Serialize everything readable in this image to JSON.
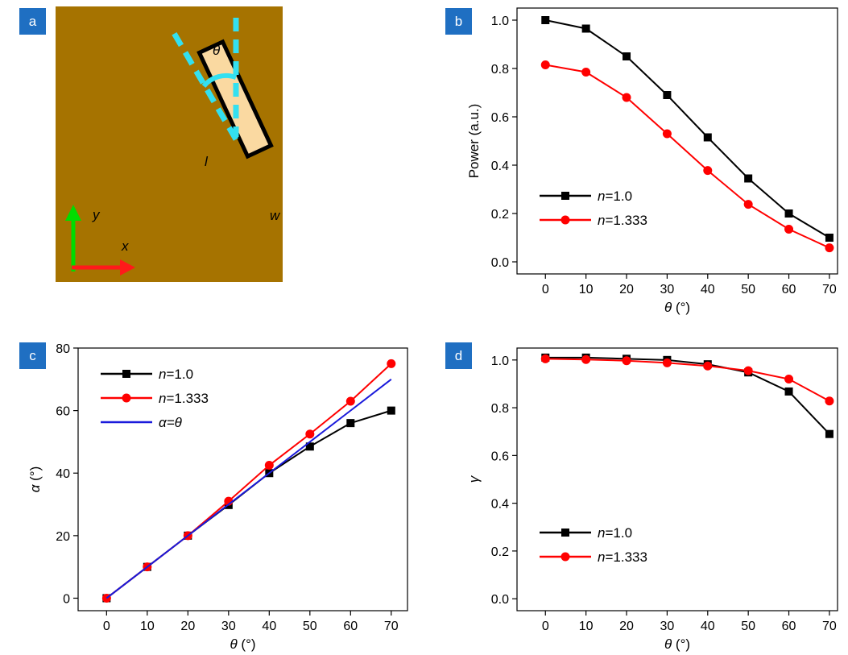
{
  "panels": {
    "a": {
      "badge": "a",
      "substrate_color": "#a67300",
      "rod_color": "#fad9a1",
      "dash_color": "#33e0f0",
      "labels": {
        "theta": "θ",
        "l": "l",
        "w": "w",
        "y": "y",
        "x": "x"
      }
    },
    "b": {
      "badge": "b"
    },
    "c": {
      "badge": "c"
    },
    "d": {
      "badge": "d"
    }
  },
  "chart_data": [
    {
      "panel": "b",
      "type": "line",
      "x": [
        0,
        10,
        20,
        30,
        40,
        50,
        60,
        70
      ],
      "xlabel_symbol": "θ",
      "xlabel_unit": " (°)",
      "ylabel": "Power (a.u.)",
      "xlim": [
        -7,
        72
      ],
      "ylim": [
        -0.05,
        1.05
      ],
      "xticks": [
        0,
        10,
        20,
        30,
        40,
        50,
        60,
        70
      ],
      "yticks": [
        0.0,
        0.2,
        0.4,
        0.6,
        0.8,
        1.0
      ],
      "ytick_format": "1",
      "legend_position": "lower-left",
      "series": [
        {
          "name": "n=1.0",
          "name_italic": "n",
          "name_rest": "=1.0",
          "color": "#000000",
          "marker": "square",
          "values": [
            1.0,
            0.965,
            0.85,
            0.69,
            0.515,
            0.345,
            0.2,
            0.1
          ]
        },
        {
          "name": "n=1.333",
          "name_italic": "n",
          "name_rest": "=1.333",
          "color": "#ff0000",
          "marker": "circle",
          "values": [
            0.815,
            0.785,
            0.68,
            0.53,
            0.378,
            0.238,
            0.135,
            0.058
          ]
        }
      ]
    },
    {
      "panel": "c",
      "type": "line",
      "x": [
        0,
        10,
        20,
        30,
        40,
        50,
        60,
        70
      ],
      "xlabel_symbol": "θ",
      "xlabel_unit": " (°)",
      "ylabel_symbol": "α",
      "ylabel_unit": " (°)",
      "xlim": [
        -7,
        74
      ],
      "ylim": [
        -4,
        80
      ],
      "xticks": [
        0,
        10,
        20,
        30,
        40,
        50,
        60,
        70
      ],
      "yticks": [
        0,
        20,
        40,
        60,
        80
      ],
      "ytick_format": "0",
      "legend_position": "upper-left",
      "series": [
        {
          "name": "n=1.0",
          "name_italic": "n",
          "name_rest": "=1.0",
          "color": "#000000",
          "marker": "square",
          "values": [
            0,
            10,
            20,
            29.8,
            40,
            48.5,
            56,
            60
          ]
        },
        {
          "name": "n=1.333",
          "name_italic": "n",
          "name_rest": "=1.333",
          "color": "#ff0000",
          "marker": "circle",
          "values": [
            0,
            10,
            20,
            31,
            42.5,
            52.5,
            63,
            75
          ]
        },
        {
          "name": "α=θ",
          "name_italic": "α=θ",
          "name_rest": "",
          "color": "#1a1adb",
          "marker": "none",
          "values": [
            0,
            10,
            20,
            30,
            40,
            50,
            60,
            70
          ]
        }
      ]
    },
    {
      "panel": "d",
      "type": "line",
      "x": [
        0,
        10,
        20,
        30,
        40,
        50,
        60,
        70
      ],
      "xlabel_symbol": "θ",
      "xlabel_unit": " (°)",
      "ylabel_symbol": "γ",
      "ylabel_unit": "",
      "xlim": [
        -7,
        72
      ],
      "ylim": [
        -0.05,
        1.05
      ],
      "xticks": [
        0,
        10,
        20,
        30,
        40,
        50,
        60,
        70
      ],
      "yticks": [
        0.0,
        0.2,
        0.4,
        0.6,
        0.8,
        1.0
      ],
      "ytick_format": "1",
      "legend_position": "lower-left",
      "series": [
        {
          "name": "n=1.0",
          "name_italic": "n",
          "name_rest": "=1.0",
          "color": "#000000",
          "marker": "square",
          "values": [
            1.01,
            1.01,
            1.005,
            1.0,
            0.982,
            0.948,
            0.868,
            0.69
          ]
        },
        {
          "name": "n=1.333",
          "name_italic": "n",
          "name_rest": "=1.333",
          "color": "#ff0000",
          "marker": "circle",
          "values": [
            1.005,
            1.002,
            0.997,
            0.988,
            0.975,
            0.955,
            0.92,
            0.828
          ]
        }
      ]
    }
  ]
}
